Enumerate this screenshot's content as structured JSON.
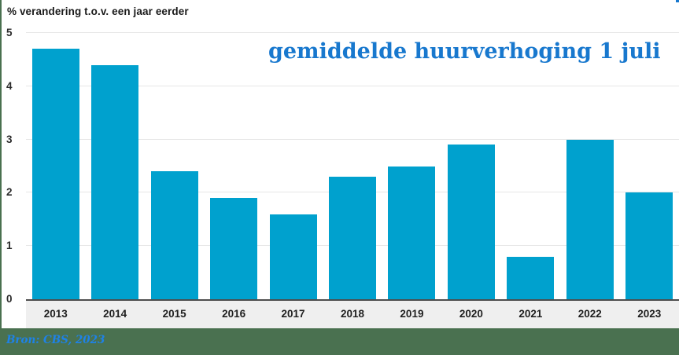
{
  "header": {
    "axis_note": "% verandering t.o.v. een jaar eerder",
    "title": "gemiddelde huurverhoging 1 juli"
  },
  "footer": {
    "source": "Bron: CBS, 2023"
  },
  "colors": {
    "bar": "#00A1CE",
    "title_blue": "#1878CE",
    "source_blue": "#1E82E8",
    "footer_green": "#4A7150",
    "xband_gray": "#EFEFEF",
    "gridline": "#E6E6E6",
    "axis_line": "#4D4D4D"
  },
  "chart_data": {
    "type": "bar",
    "title": "gemiddelde huurverhoging 1 juli",
    "ylabel": "% verandering t.o.v. een jaar eerder",
    "xlabel": "",
    "categories": [
      "2013",
      "2014",
      "2015",
      "2016",
      "2017",
      "2018",
      "2019",
      "2020",
      "2021",
      "2022",
      "2023"
    ],
    "values": [
      4.7,
      4.4,
      2.4,
      1.9,
      1.6,
      2.3,
      2.5,
      2.9,
      0.8,
      3.0,
      2.0
    ],
    "ylim": [
      0,
      5
    ],
    "yticks": [
      0,
      1,
      2,
      3,
      4,
      5
    ],
    "grid": true,
    "legend": "none",
    "source": "Bron: CBS, 2023"
  }
}
